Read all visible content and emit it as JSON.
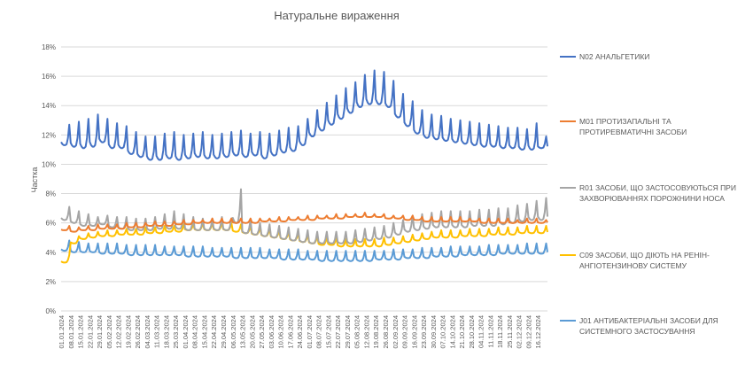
{
  "chart_data": {
    "type": "line",
    "title": "Натуральне вираження",
    "xlabel": "",
    "ylabel": "Частка",
    "ylim": [
      0,
      0.18
    ],
    "ytick_values": [
      0,
      0.02,
      0.04,
      0.06,
      0.08,
      0.1,
      0.12,
      0.14,
      0.16,
      0.18
    ],
    "ytick_labels": [
      "0%",
      "2%",
      "4%",
      "6%",
      "8%",
      "10%",
      "12%",
      "14%",
      "16%",
      "18%"
    ],
    "x_start": "01.01.2024",
    "x_end": "23.12.2024",
    "xtick_labels": [
      "01.01.2024",
      "08.01.2024",
      "15.01.2024",
      "22.01.2024",
      "29.01.2024",
      "05.02.2024",
      "12.02.2024",
      "19.02.2024",
      "26.02.2024",
      "04.03.2024",
      "11.03.2024",
      "18.03.2024",
      "25.03.2024",
      "01.04.2024",
      "08.04.2024",
      "15.04.2024",
      "22.04.2024",
      "29.04.2024",
      "06.05.2024",
      "13.05.2024",
      "20.05.2024",
      "27.05.2024",
      "03.06.2024",
      "10.06.2024",
      "17.06.2024",
      "24.06.2024",
      "01.07.2024",
      "08.07.2024",
      "15.07.2024",
      "22.07.2024",
      "29.07.2024",
      "05.08.2024",
      "12.08.2024",
      "19.08.2024",
      "26.08.2024",
      "02.09.2024",
      "09.09.2024",
      "16.09.2024",
      "23.09.2024",
      "30.09.2024",
      "07.10.2024",
      "14.10.2024",
      "21.10.2024",
      "28.10.2024",
      "04.11.2024",
      "11.11.2024",
      "18.11.2024",
      "25.11.2024",
      "02.12.2024",
      "09.12.2024",
      "16.12.2024"
    ],
    "grid": "horizontal",
    "legend_position": "right",
    "series": [
      {
        "name": "N02 АНАЛЬГЕТИКИ",
        "color": "#4472C4",
        "weekly_base": [
          0.113,
          0.112,
          0.111,
          0.112,
          0.115,
          0.111,
          0.111,
          0.107,
          0.105,
          0.103,
          0.103,
          0.104,
          0.103,
          0.104,
          0.105,
          0.104,
          0.104,
          0.105,
          0.106,
          0.105,
          0.106,
          0.104,
          0.106,
          0.108,
          0.109,
          0.113,
          0.119,
          0.123,
          0.127,
          0.131,
          0.135,
          0.139,
          0.141,
          0.141,
          0.139,
          0.132,
          0.126,
          0.121,
          0.118,
          0.117,
          0.116,
          0.115,
          0.114,
          0.113,
          0.112,
          0.112,
          0.111,
          0.111,
          0.11,
          0.11,
          0.111
        ],
        "weekly_peak": [
          0.127,
          0.129,
          0.131,
          0.134,
          0.131,
          0.128,
          0.126,
          0.122,
          0.119,
          0.119,
          0.121,
          0.122,
          0.12,
          0.121,
          0.122,
          0.12,
          0.121,
          0.122,
          0.123,
          0.121,
          0.122,
          0.121,
          0.123,
          0.125,
          0.126,
          0.131,
          0.137,
          0.142,
          0.147,
          0.152,
          0.156,
          0.161,
          0.164,
          0.163,
          0.157,
          0.148,
          0.143,
          0.137,
          0.134,
          0.133,
          0.131,
          0.13,
          0.129,
          0.128,
          0.127,
          0.126,
          0.125,
          0.125,
          0.124,
          0.128,
          0.119
        ]
      },
      {
        "name": "M01 ПРОТИЗАПАЛЬНІ ТА ПРОТИРЕВМАТИЧНІ ЗАСОБИ",
        "color": "#ED7D31",
        "weekly_base": [
          0.055,
          0.054,
          0.055,
          0.055,
          0.056,
          0.056,
          0.056,
          0.057,
          0.057,
          0.058,
          0.058,
          0.058,
          0.059,
          0.059,
          0.06,
          0.06,
          0.06,
          0.06,
          0.06,
          0.06,
          0.06,
          0.061,
          0.061,
          0.061,
          0.062,
          0.062,
          0.062,
          0.063,
          0.063,
          0.063,
          0.064,
          0.064,
          0.064,
          0.064,
          0.063,
          0.063,
          0.062,
          0.062,
          0.061,
          0.061,
          0.061,
          0.061,
          0.061,
          0.061,
          0.06,
          0.06,
          0.06,
          0.06,
          0.06,
          0.06,
          0.06
        ],
        "weekly_peak": [
          0.058,
          0.057,
          0.058,
          0.059,
          0.059,
          0.059,
          0.06,
          0.06,
          0.06,
          0.061,
          0.061,
          0.061,
          0.062,
          0.062,
          0.062,
          0.063,
          0.063,
          0.063,
          0.063,
          0.063,
          0.063,
          0.063,
          0.064,
          0.064,
          0.064,
          0.065,
          0.065,
          0.065,
          0.066,
          0.066,
          0.066,
          0.067,
          0.066,
          0.066,
          0.065,
          0.065,
          0.065,
          0.064,
          0.064,
          0.064,
          0.064,
          0.064,
          0.063,
          0.063,
          0.063,
          0.063,
          0.063,
          0.062,
          0.063,
          0.063,
          0.062
        ]
      },
      {
        "name": "R01 ЗАСОБИ, ЩО ЗАСТОСОВУЮТЬСЯ ПРИ ЗАХВОРЮВАННЯХ ПОРОЖНИНИ НОСА",
        "color": "#A5A5A5",
        "weekly_base": [
          0.062,
          0.06,
          0.058,
          0.058,
          0.059,
          0.057,
          0.056,
          0.055,
          0.055,
          0.055,
          0.056,
          0.056,
          0.056,
          0.055,
          0.055,
          0.055,
          0.055,
          0.055,
          0.06,
          0.053,
          0.052,
          0.051,
          0.05,
          0.049,
          0.048,
          0.047,
          0.046,
          0.046,
          0.046,
          0.046,
          0.046,
          0.047,
          0.048,
          0.049,
          0.05,
          0.052,
          0.054,
          0.055,
          0.056,
          0.057,
          0.057,
          0.057,
          0.057,
          0.058,
          0.058,
          0.058,
          0.059,
          0.06,
          0.061,
          0.062,
          0.062
        ],
        "weekly_peak": [
          0.071,
          0.068,
          0.066,
          0.064,
          0.065,
          0.064,
          0.064,
          0.063,
          0.063,
          0.064,
          0.066,
          0.068,
          0.066,
          0.064,
          0.063,
          0.063,
          0.064,
          0.063,
          0.083,
          0.062,
          0.06,
          0.059,
          0.058,
          0.057,
          0.056,
          0.055,
          0.054,
          0.054,
          0.054,
          0.054,
          0.055,
          0.056,
          0.057,
          0.058,
          0.06,
          0.062,
          0.065,
          0.066,
          0.067,
          0.068,
          0.068,
          0.068,
          0.068,
          0.069,
          0.069,
          0.07,
          0.07,
          0.072,
          0.073,
          0.075,
          0.077
        ]
      },
      {
        "name": "C09 ЗАСОБИ, ЩО ДІЮТЬ НА РЕНІН-АНГІОТЕНЗИНОВУ СИСТЕМУ",
        "color": "#FFC000",
        "weekly_base": [
          0.033,
          0.046,
          0.049,
          0.05,
          0.051,
          0.051,
          0.052,
          0.052,
          0.052,
          0.053,
          0.053,
          0.054,
          0.054,
          0.055,
          0.055,
          0.055,
          0.055,
          0.055,
          0.054,
          0.053,
          0.052,
          0.051,
          0.05,
          0.049,
          0.048,
          0.047,
          0.046,
          0.045,
          0.045,
          0.044,
          0.044,
          0.044,
          0.044,
          0.044,
          0.045,
          0.046,
          0.047,
          0.048,
          0.049,
          0.05,
          0.05,
          0.05,
          0.051,
          0.051,
          0.051,
          0.052,
          0.052,
          0.052,
          0.053,
          0.053,
          0.053
        ],
        "weekly_peak": [
          0.038,
          0.051,
          0.053,
          0.054,
          0.055,
          0.055,
          0.056,
          0.056,
          0.057,
          0.057,
          0.058,
          0.058,
          0.059,
          0.059,
          0.06,
          0.06,
          0.06,
          0.06,
          0.059,
          0.058,
          0.057,
          0.056,
          0.055,
          0.054,
          0.053,
          0.052,
          0.051,
          0.05,
          0.05,
          0.049,
          0.049,
          0.049,
          0.049,
          0.05,
          0.05,
          0.051,
          0.052,
          0.053,
          0.054,
          0.055,
          0.055,
          0.055,
          0.056,
          0.056,
          0.056,
          0.057,
          0.057,
          0.057,
          0.058,
          0.058,
          0.058
        ]
      },
      {
        "name": "J01 АНТИБАКТЕРІАЛЬНІ ЗАСОБИ ДЛЯ СИСТЕМНОГО ЗАСТОСУВАННЯ",
        "color": "#5B9BD5",
        "weekly_base": [
          0.041,
          0.04,
          0.04,
          0.04,
          0.039,
          0.039,
          0.039,
          0.038,
          0.038,
          0.038,
          0.038,
          0.038,
          0.038,
          0.037,
          0.037,
          0.037,
          0.037,
          0.037,
          0.036,
          0.036,
          0.036,
          0.036,
          0.036,
          0.035,
          0.035,
          0.035,
          0.035,
          0.034,
          0.034,
          0.034,
          0.034,
          0.034,
          0.034,
          0.035,
          0.035,
          0.035,
          0.036,
          0.036,
          0.036,
          0.037,
          0.037,
          0.037,
          0.038,
          0.038,
          0.038,
          0.038,
          0.039,
          0.039,
          0.039,
          0.039,
          0.039
        ],
        "weekly_peak": [
          0.048,
          0.047,
          0.046,
          0.046,
          0.046,
          0.046,
          0.045,
          0.045,
          0.045,
          0.045,
          0.044,
          0.044,
          0.044,
          0.044,
          0.044,
          0.043,
          0.043,
          0.043,
          0.043,
          0.043,
          0.043,
          0.042,
          0.042,
          0.042,
          0.042,
          0.041,
          0.041,
          0.041,
          0.041,
          0.041,
          0.041,
          0.041,
          0.041,
          0.041,
          0.042,
          0.042,
          0.042,
          0.043,
          0.043,
          0.043,
          0.044,
          0.044,
          0.044,
          0.044,
          0.045,
          0.045,
          0.045,
          0.045,
          0.046,
          0.046,
          0.046
        ]
      }
    ]
  }
}
